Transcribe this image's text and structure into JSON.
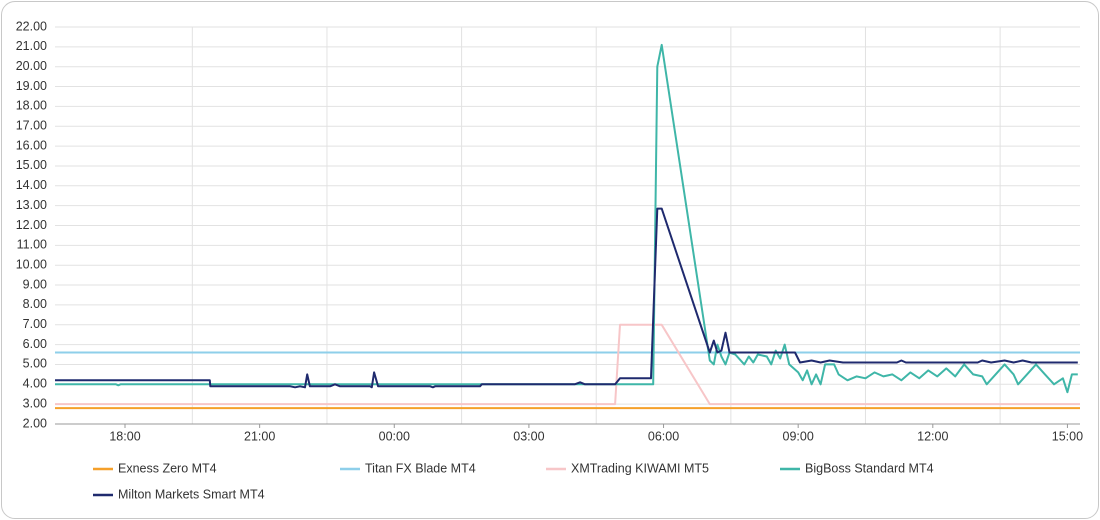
{
  "chart_data": {
    "type": "line",
    "xlim": [
      16.44,
      39.28
    ],
    "xticks": [
      {
        "value": 18,
        "label": "18:00"
      },
      {
        "value": 21,
        "label": "21:00"
      },
      {
        "value": 24,
        "label": "00:00"
      },
      {
        "value": 27,
        "label": "03:00"
      },
      {
        "value": 30,
        "label": "06:00"
      },
      {
        "value": 33,
        "label": "09:00"
      },
      {
        "value": 36,
        "label": "12:00"
      },
      {
        "value": 39,
        "label": "15:00"
      }
    ],
    "ylim": [
      2,
      22
    ],
    "yticks": [
      {
        "value": 2,
        "label": "2.00"
      },
      {
        "value": 3,
        "label": "3.00"
      },
      {
        "value": 4,
        "label": "4.00"
      },
      {
        "value": 5,
        "label": "5.00"
      },
      {
        "value": 6,
        "label": "6.00"
      },
      {
        "value": 7,
        "label": "7.00"
      },
      {
        "value": 8,
        "label": "8.00"
      },
      {
        "value": 9,
        "label": "9.00"
      },
      {
        "value": 10,
        "label": "10.00"
      },
      {
        "value": 11,
        "label": "11.00"
      },
      {
        "value": 12,
        "label": "12.00"
      },
      {
        "value": 13,
        "label": "13.00"
      },
      {
        "value": 14,
        "label": "14.00"
      },
      {
        "value": 15,
        "label": "15.00"
      },
      {
        "value": 16,
        "label": "16.00"
      },
      {
        "value": 17,
        "label": "17.00"
      },
      {
        "value": 18,
        "label": "18.00"
      },
      {
        "value": 19,
        "label": "19.00"
      },
      {
        "value": 20,
        "label": "20.00"
      },
      {
        "value": 21,
        "label": "21.00"
      },
      {
        "value": 22,
        "label": "22.00"
      }
    ],
    "grid": true,
    "legend": "bottom",
    "series": [
      {
        "name": "Exness Zero MT4",
        "color": "#f5a02a",
        "x": [
          16.44,
          39.28
        ],
        "values": [
          2.8,
          2.8
        ]
      },
      {
        "name": "Titan FX Blade MT4",
        "color": "#8ecfea",
        "x": [
          16.44,
          39.28
        ],
        "values": [
          5.6,
          5.6
        ]
      },
      {
        "name": "XMTrading KIWAMI MT5",
        "color": "#f7c6c8",
        "x": [
          16.44,
          28.92,
          29.03,
          29.96,
          31.03,
          39.28
        ],
        "values": [
          3.0,
          3.0,
          7.0,
          7.0,
          3.0,
          3.0
        ]
      },
      {
        "name": "BigBoss Standard MT4",
        "color": "#3fb6a8",
        "x": [
          16.44,
          17.8,
          17.85,
          17.9,
          29.72,
          29.77,
          29.86,
          29.96,
          31.03,
          31.12,
          31.2,
          31.29,
          31.38,
          31.47,
          31.6,
          31.8,
          31.9,
          32.0,
          32.1,
          32.3,
          32.4,
          32.5,
          32.6,
          32.7,
          32.8,
          33.0,
          33.1,
          33.2,
          33.3,
          33.4,
          33.5,
          33.6,
          33.8,
          33.9,
          34.1,
          34.3,
          34.5,
          34.7,
          34.9,
          35.1,
          35.3,
          35.5,
          35.7,
          35.9,
          36.1,
          36.3,
          36.5,
          36.7,
          36.9,
          37.1,
          37.2,
          37.4,
          37.6,
          37.8,
          37.9,
          38.1,
          38.3,
          38.5,
          38.7,
          38.9,
          39.0,
          39.1,
          39.23
        ],
        "values": [
          4.0,
          4.0,
          3.95,
          4.0,
          4.0,
          4.0,
          20.0,
          21.1,
          5.2,
          5.0,
          6.0,
          5.4,
          5.0,
          5.6,
          5.5,
          5.0,
          5.4,
          5.1,
          5.5,
          5.4,
          5.0,
          5.7,
          5.3,
          6.0,
          5.0,
          4.6,
          4.2,
          4.7,
          4.0,
          4.5,
          4.0,
          5.0,
          5.0,
          4.5,
          4.2,
          4.4,
          4.3,
          4.6,
          4.4,
          4.5,
          4.2,
          4.6,
          4.3,
          4.7,
          4.4,
          4.8,
          4.4,
          5.0,
          4.5,
          4.4,
          4.0,
          4.5,
          5.0,
          4.5,
          4.0,
          4.5,
          5.0,
          4.5,
          4.0,
          4.3,
          3.6,
          4.5,
          4.5
        ]
      },
      {
        "name": "Milton Markets Smart MT4",
        "color": "#1f2a6e",
        "x": [
          16.44,
          19.89,
          19.9,
          21.68,
          21.79,
          21.9,
          22.01,
          22.06,
          22.12,
          22.57,
          22.68,
          22.79,
          23.46,
          23.5,
          23.55,
          23.64,
          24.8,
          24.86,
          24.91,
          25.91,
          25.95,
          28.02,
          28.14,
          28.25,
          28.92,
          29.03,
          29.72,
          29.86,
          29.96,
          31.03,
          31.12,
          31.2,
          31.29,
          31.38,
          31.47,
          32.93,
          33.04,
          33.3,
          33.5,
          33.7,
          34.0,
          35.2,
          35.3,
          35.4,
          37.0,
          37.1,
          37.3,
          37.6,
          37.8,
          38.0,
          38.2,
          39.23
        ],
        "values": [
          4.2,
          4.2,
          3.9,
          3.9,
          3.85,
          3.9,
          3.85,
          4.5,
          3.9,
          3.9,
          4.0,
          3.9,
          3.9,
          3.85,
          4.6,
          3.9,
          3.9,
          3.85,
          3.9,
          3.9,
          4.0,
          4.0,
          4.1,
          4.0,
          4.0,
          4.3,
          4.3,
          12.85,
          12.85,
          5.6,
          6.2,
          5.6,
          5.7,
          6.6,
          5.6,
          5.6,
          5.1,
          5.2,
          5.1,
          5.2,
          5.1,
          5.1,
          5.2,
          5.1,
          5.1,
          5.2,
          5.1,
          5.2,
          5.1,
          5.2,
          5.1,
          5.1
        ]
      }
    ]
  }
}
